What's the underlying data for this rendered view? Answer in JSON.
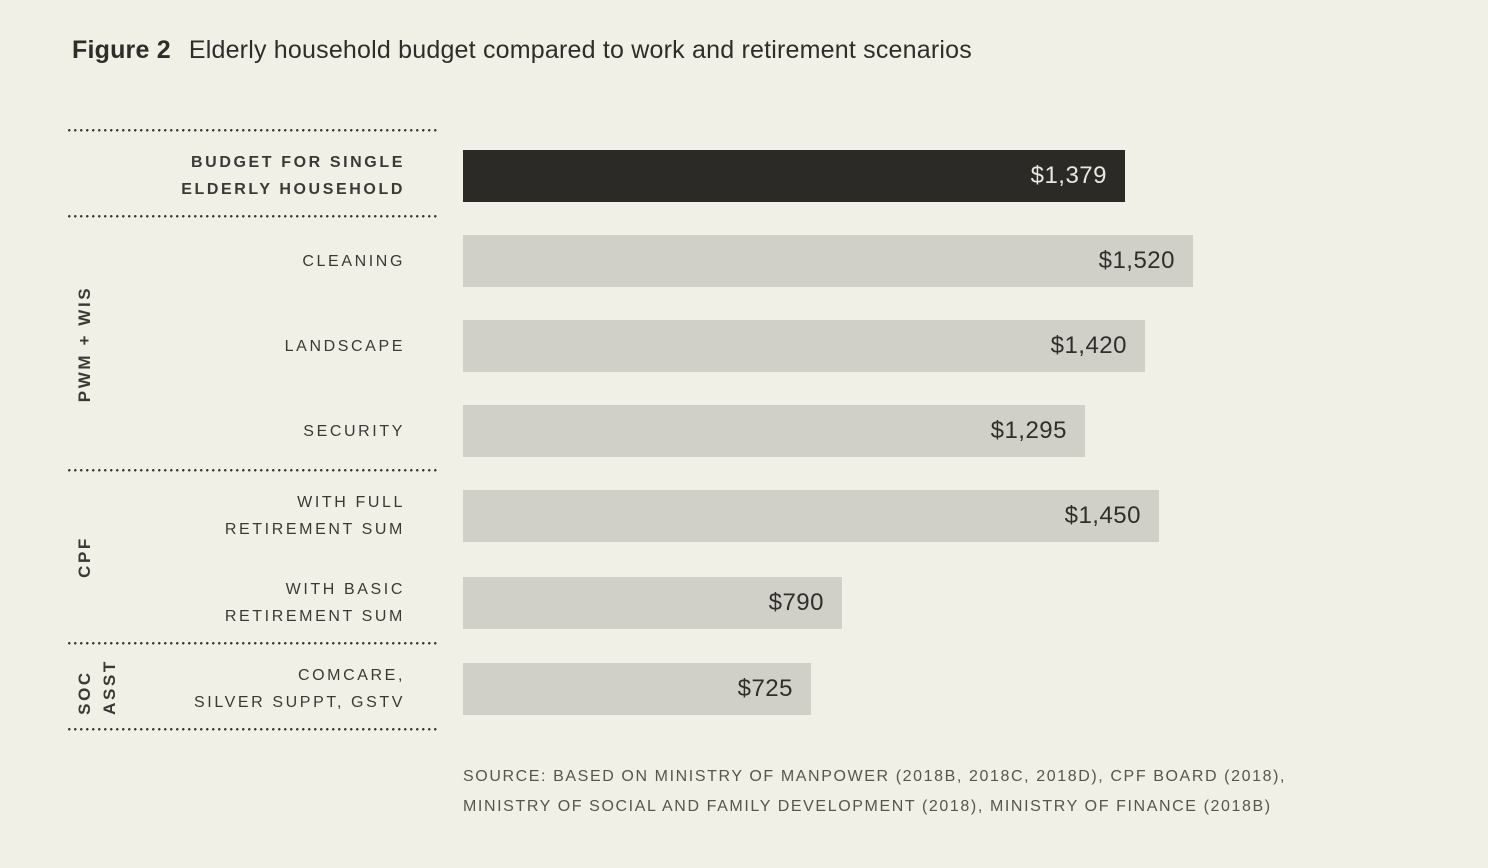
{
  "figure": {
    "label": "Figure 2",
    "title": "Elderly household budget compared to work and retirement scenarios"
  },
  "source": {
    "line1": "SOURCE: BASED ON MINISTRY OF MANPOWER (2018B, 2018C, 2018D), CPF BOARD (2018),",
    "line2": "MINISTRY OF SOCIAL AND FAMILY DEVELOPMENT (2018), MINISTRY OF FINANCE (2018B)"
  },
  "colors": {
    "background": "#f1f0e7",
    "bar_dark": "#2b2a27",
    "bar_light": "#d1d0c8",
    "value_on_dark": "#eae8de",
    "value_on_light": "#2f2e2b",
    "label_text": "#3a3936",
    "source_text": "#56554e"
  },
  "chart_data": {
    "type": "bar",
    "orientation": "horizontal",
    "title": "Elderly household budget compared to work and retirement scenarios",
    "value_unit": "$",
    "value_axis_range": [
      0,
      1520
    ],
    "legend": "none",
    "grid": false,
    "groups": [
      {
        "group_label_lines": [],
        "bars": [
          {
            "label_lines": [
              "BUDGET FOR SINGLE",
              "ELDERLY HOUSEHOLD"
            ],
            "value": 1379,
            "display_value": "$1,379",
            "emphasis": true
          }
        ]
      },
      {
        "group_label_lines": [
          "PWM + WIS"
        ],
        "bars": [
          {
            "label_lines": [
              "CLEANING"
            ],
            "value": 1520,
            "display_value": "$1,520",
            "emphasis": false
          },
          {
            "label_lines": [
              "LANDSCAPE"
            ],
            "value": 1420,
            "display_value": "$1,420",
            "emphasis": false
          },
          {
            "label_lines": [
              "SECURITY"
            ],
            "value": 1295,
            "display_value": "$1,295",
            "emphasis": false
          }
        ]
      },
      {
        "group_label_lines": [
          "CPF"
        ],
        "bars": [
          {
            "label_lines": [
              "WITH FULL",
              "RETIREMENT SUM"
            ],
            "value": 1450,
            "display_value": "$1,450",
            "emphasis": false
          },
          {
            "label_lines": [
              "WITH BASIC",
              "RETIREMENT SUM"
            ],
            "value": 790,
            "display_value": "$790",
            "emphasis": false
          }
        ]
      },
      {
        "group_label_lines": [
          "SOC",
          "ASST"
        ],
        "bars": [
          {
            "label_lines": [
              "COMCARE,",
              "SILVER SUPPT, GSTV"
            ],
            "value": 725,
            "display_value": "$725",
            "emphasis": false
          }
        ]
      }
    ]
  }
}
